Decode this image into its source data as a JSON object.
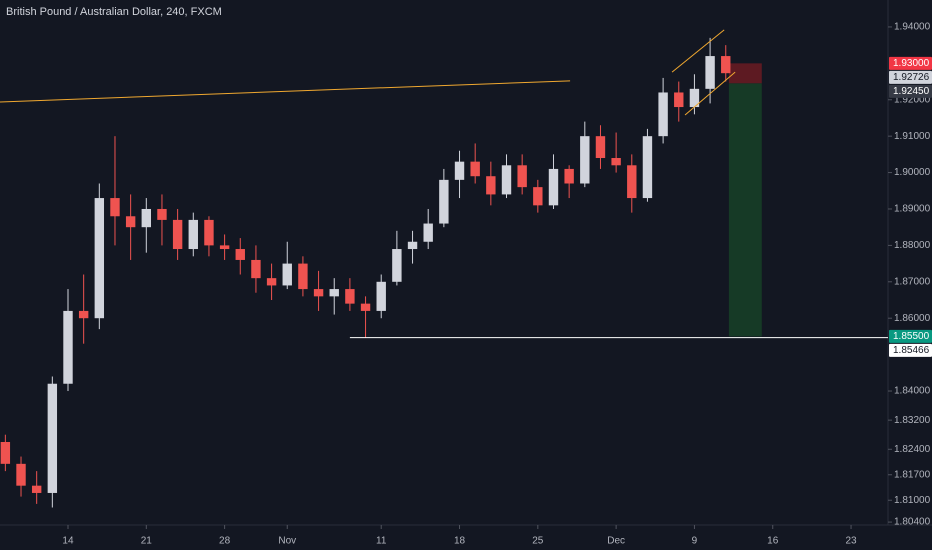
{
  "chart_data": {
    "type": "candlestick",
    "title": "British Pound / Australian Dollar, 240, FXCM",
    "background": "#131722",
    "up_color": "#d1d4dc",
    "down_color": "#ef5350",
    "x": [
      -4,
      -3,
      -2,
      -1,
      0,
      1,
      2,
      3,
      4,
      5,
      6,
      7,
      8,
      9,
      10,
      11,
      12,
      13,
      14,
      15,
      16,
      17,
      18,
      19,
      20,
      21,
      22,
      23,
      24,
      25,
      26,
      27,
      28,
      29,
      30,
      31,
      32,
      33,
      34,
      35,
      36,
      37,
      38,
      39,
      40,
      41,
      42
    ],
    "open": [
      1.826,
      1.82,
      1.814,
      1.812,
      1.842,
      1.862,
      1.86,
      1.893,
      1.888,
      1.885,
      1.89,
      1.887,
      1.879,
      1.887,
      1.88,
      1.879,
      1.876,
      1.871,
      1.869,
      1.875,
      1.868,
      1.866,
      1.868,
      1.864,
      1.862,
      1.87,
      1.879,
      1.881,
      1.886,
      1.898,
      1.903,
      1.899,
      1.894,
      1.902,
      1.896,
      1.891,
      1.901,
      1.897,
      1.91,
      1.904,
      1.902,
      1.893,
      1.91,
      1.922,
      1.918,
      1.923,
      1.932
    ],
    "high": [
      1.828,
      1.822,
      1.818,
      1.844,
      1.868,
      1.872,
      1.897,
      1.91,
      1.894,
      1.893,
      1.894,
      1.89,
      1.889,
      1.888,
      1.883,
      1.882,
      1.88,
      1.875,
      1.881,
      1.877,
      1.873,
      1.871,
      1.871,
      1.866,
      1.872,
      1.884,
      1.884,
      1.89,
      1.901,
      1.906,
      1.908,
      1.903,
      1.905,
      1.905,
      1.898,
      1.905,
      1.902,
      1.914,
      1.913,
      1.911,
      1.905,
      1.912,
      1.926,
      1.925,
      1.927,
      1.937,
      1.935
    ],
    "low": [
      1.818,
      1.811,
      1.809,
      1.808,
      1.84,
      1.853,
      1.857,
      1.88,
      1.876,
      1.878,
      1.88,
      1.876,
      1.877,
      1.877,
      1.876,
      1.872,
      1.867,
      1.865,
      1.868,
      1.866,
      1.862,
      1.861,
      1.862,
      1.8547,
      1.86,
      1.869,
      1.875,
      1.879,
      1.885,
      1.893,
      1.897,
      1.891,
      1.893,
      1.894,
      1.889,
      1.89,
      1.893,
      1.896,
      1.901,
      1.9,
      1.889,
      1.892,
      1.908,
      1.914,
      1.916,
      1.919,
      1.925
    ],
    "close": [
      1.82,
      1.814,
      1.812,
      1.842,
      1.862,
      1.86,
      1.893,
      1.888,
      1.885,
      1.89,
      1.887,
      1.879,
      1.887,
      1.88,
      1.879,
      1.876,
      1.871,
      1.869,
      1.875,
      1.868,
      1.866,
      1.868,
      1.864,
      1.862,
      1.87,
      1.879,
      1.881,
      1.886,
      1.898,
      1.903,
      1.899,
      1.894,
      1.902,
      1.896,
      1.891,
      1.901,
      1.897,
      1.91,
      1.904,
      1.902,
      1.893,
      1.91,
      1.922,
      1.918,
      1.923,
      1.932,
      1.9273
    ],
    "xlim": [
      -4.342,
      52.36
    ],
    "ylim": [
      1.8032,
      1.9474
    ],
    "xticks": [
      {
        "value": 0,
        "label": "14"
      },
      {
        "value": 5,
        "label": "21"
      },
      {
        "value": 10,
        "label": "28"
      },
      {
        "value": 14,
        "label": "Nov"
      },
      {
        "value": 20,
        "label": "11"
      },
      {
        "value": 25,
        "label": "18"
      },
      {
        "value": 30,
        "label": "25"
      },
      {
        "value": 35,
        "label": "Dec"
      },
      {
        "value": 40,
        "label": "9"
      },
      {
        "value": 45,
        "label": "16"
      },
      {
        "value": 50,
        "label": "23"
      }
    ],
    "yticks": [
      {
        "value": 1.94,
        "label": "1.94000"
      },
      {
        "value": 1.92,
        "label": "1.92000"
      },
      {
        "value": 1.91,
        "label": "1.91000"
      },
      {
        "value": 1.9,
        "label": "1.90000"
      },
      {
        "value": 1.89,
        "label": "1.89000"
      },
      {
        "value": 1.88,
        "label": "1.88000"
      },
      {
        "value": 1.87,
        "label": "1.87000"
      },
      {
        "value": 1.86,
        "label": "1.86000"
      },
      {
        "value": 1.84,
        "label": "1.84000"
      },
      {
        "value": 1.832,
        "label": "1.83200"
      },
      {
        "value": 1.824,
        "label": "1.82400"
      },
      {
        "value": 1.817,
        "label": "1.81700"
      },
      {
        "value": 1.81,
        "label": "1.81000"
      },
      {
        "value": 1.804,
        "label": "1.80400"
      }
    ],
    "trendline": {
      "x": [
        -4.342,
        32.06
      ],
      "y": [
        1.9194,
        1.9252
      ],
      "color": "#f0a830"
    },
    "channel": [
      {
        "x": [
          38.57,
          41.9
        ],
        "y": [
          1.9276,
          1.9392
        ],
        "color": "#f0a830"
      },
      {
        "x": [
          39.4,
          42.6
        ],
        "y": [
          1.9158,
          1.9276
        ],
        "color": "#f0a830"
      }
    ],
    "hline": {
      "x_start": 18.0,
      "value": 1.85466,
      "color": "#ffffff"
    },
    "position": {
      "x": [
        42.2,
        44.3
      ],
      "stop": 1.93,
      "entry": 1.9245,
      "target": 1.855,
      "stop_color": "#5d1a22",
      "target_color": "#163a26"
    },
    "price_labels": [
      {
        "value": 1.93,
        "label": "1.93000",
        "color": "#f23645",
        "text_color": "#ffffff"
      },
      {
        "value": 1.92726,
        "label": "1.92726",
        "color": "#d1d4dc",
        "text_color": "#131722"
      },
      {
        "value": 1.9245,
        "label": "1.92450",
        "color": "#363a45",
        "text_color": "#ffffff"
      },
      {
        "value": 1.855,
        "label": "1.85500",
        "color": "#089981",
        "text_color": "#ffffff"
      },
      {
        "value": 1.85466,
        "label": "1.85466",
        "color": "#ffffff",
        "text_color": "#131722"
      }
    ]
  }
}
